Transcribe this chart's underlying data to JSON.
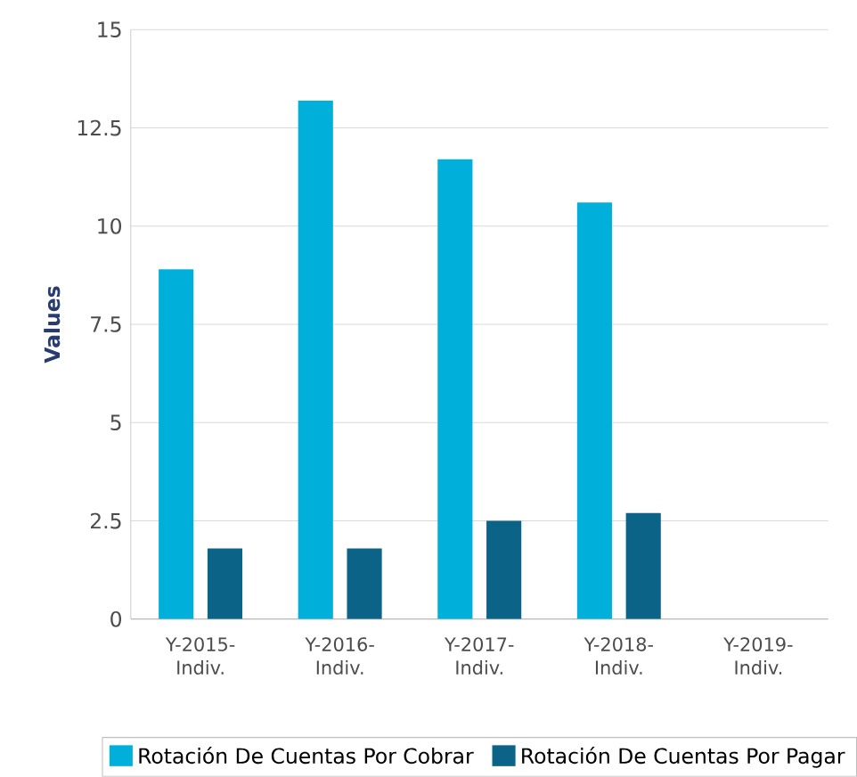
{
  "chart_data": {
    "type": "bar",
    "ylabel": "Values",
    "categories": [
      "Y-2015-Indiv.",
      "Y-2016-Indiv.",
      "Y-2017-Indiv.",
      "Y-2018-Indiv.",
      "Y-2019-Indiv."
    ],
    "series": [
      {
        "name": "Rotación De Cuentas Por Cobrar",
        "color": "#00b0da",
        "values": [
          8.9,
          13.2,
          11.7,
          10.6,
          null
        ]
      },
      {
        "name": "Rotación De Cuentas Por Pagar",
        "color": "#0b6487",
        "values": [
          1.8,
          1.8,
          2.5,
          2.7,
          null
        ]
      }
    ],
    "ylim": [
      0,
      15
    ],
    "yticks": [
      0,
      2.5,
      5,
      7.5,
      10,
      12.5,
      15
    ],
    "grid": "y",
    "legend": "bottom"
  }
}
